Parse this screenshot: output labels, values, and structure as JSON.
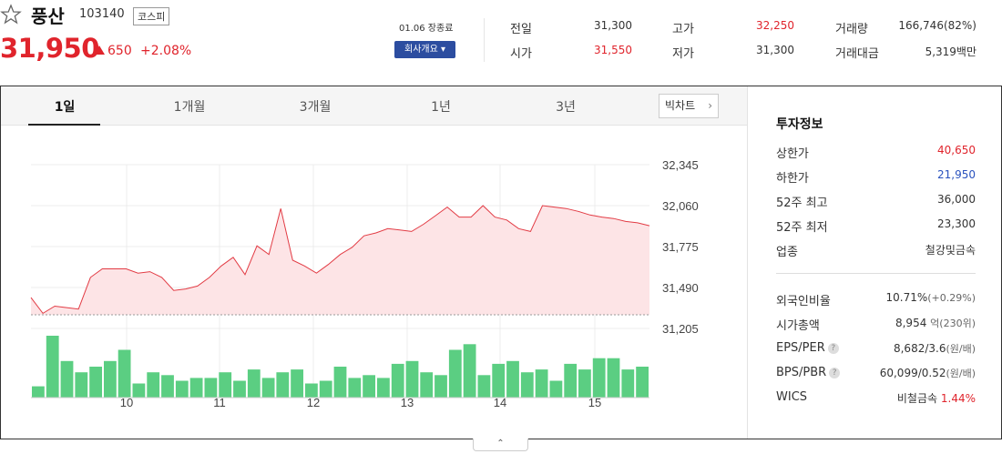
{
  "stock": {
    "name": "풍산",
    "code": "103140",
    "market": "코스피",
    "price": "31,950",
    "change": "650",
    "change_pct": "+2.08%",
    "date": "01.06 장종료",
    "company_btn": "회사개요 ▾"
  },
  "quotes": {
    "prev_label": "전일",
    "prev": "31,300",
    "open_label": "시가",
    "open": "31,550",
    "high_label": "고가",
    "high": "32,250",
    "low_label": "저가",
    "low": "31,300",
    "volume_label": "거래량",
    "volume": "166,746(82%)",
    "amount_label": "거래대금",
    "amount": "5,319백만"
  },
  "tabs": [
    "1일",
    "1개월",
    "3개월",
    "1년",
    "3년"
  ],
  "bigchart_label": "빅차트",
  "chart_data": {
    "type": "line",
    "ylim": [
      31205,
      32345
    ],
    "ytick_labels": [
      "32,345",
      "32,060",
      "31,775",
      "31,490",
      "31,205"
    ],
    "yticks": [
      32345,
      32060,
      31775,
      31490,
      31205
    ],
    "xtick_labels": [
      "10",
      "11",
      "12",
      "13",
      "14",
      "15"
    ],
    "xtick_positions": [
      3,
      11,
      19,
      27,
      35,
      43
    ],
    "baseline": 31300,
    "series": [
      {
        "values": [
          31420,
          31310,
          31360,
          31350,
          31340,
          31560,
          31620,
          31620,
          31620,
          31590,
          31600,
          31560,
          31470,
          31480,
          31500,
          31560,
          31640,
          31700,
          31580,
          31780,
          31720,
          32040,
          31680,
          31640,
          31590,
          31650,
          31720,
          31770,
          31850,
          31870,
          31900,
          31890,
          31880,
          31930,
          31990,
          32050,
          31980,
          31980,
          32060,
          31980,
          31960,
          31900,
          31880
        ],
        "volume": [
          4,
          22,
          13,
          9,
          11,
          13,
          17,
          5,
          9,
          8,
          6,
          7,
          7,
          9,
          6,
          10,
          7,
          9,
          10,
          5,
          6,
          11,
          7,
          8,
          7,
          12,
          13,
          9,
          8,
          17,
          19,
          8,
          12,
          13,
          9,
          10,
          6,
          12,
          10,
          14,
          14,
          10,
          11
        ]
      }
    ],
    "intraday": [
      32060,
      32050,
      32040,
      32020,
      31995,
      31980,
      31970,
      31950,
      31940,
      31920
    ]
  },
  "invest": {
    "title": "투자정보",
    "rows": [
      {
        "label": "상한가",
        "value": "40,650"
      },
      {
        "label": "하한가",
        "value": "21,950"
      },
      {
        "label": "52주 최고",
        "value": "36,000"
      },
      {
        "label": "52주 최저",
        "value": "23,300"
      },
      {
        "label": "업종",
        "value": "철강및금속"
      }
    ],
    "foreign_label": "외국인비율",
    "foreign_value": "10.71%",
    "foreign_sub": "(+0.29%)",
    "cap_label": "시가총액",
    "cap_value": "8,954",
    "cap_sub": "억(230위)",
    "eps_label": "EPS/PER",
    "eps_value": "8,682/3.6",
    "eps_sub": "(원/배)",
    "bps_label": "BPS/PBR",
    "bps_value": "60,099/0.52",
    "bps_sub": "(원/배)",
    "wics_label": "WICS",
    "wics_value": "비철금속",
    "wics_pct": "1.44%"
  },
  "toggle_label": "⌃"
}
